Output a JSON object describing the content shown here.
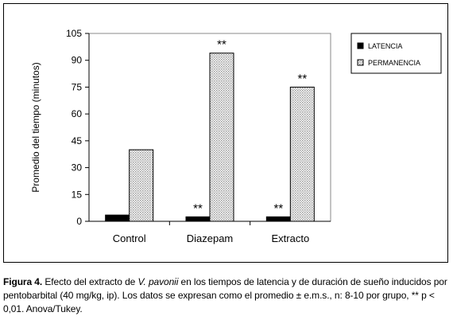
{
  "chart_data": {
    "type": "bar",
    "categories": [
      "Control",
      "Diazepam",
      "Extracto"
    ],
    "series": [
      {
        "name": "LATENCIA",
        "values": [
          3.5,
          2.5,
          2.5
        ],
        "color": "#000000",
        "pattern": "solid"
      },
      {
        "name": "PERMANENCIA",
        "values": [
          40,
          94,
          75
        ],
        "color": "#d9d9d9",
        "pattern": "dotted"
      }
    ],
    "annotations": [
      {
        "category": "Diazepam",
        "series": "LATENCIA",
        "text": "**"
      },
      {
        "category": "Diazepam",
        "series": "PERMANENCIA",
        "text": "**"
      },
      {
        "category": "Extracto",
        "series": "LATENCIA",
        "text": "**"
      },
      {
        "category": "Extracto",
        "series": "PERMANENCIA",
        "text": "**"
      }
    ],
    "ylabel": "Promedio del tiempo (minutos)",
    "xlabel": "",
    "ylim": [
      0,
      105
    ],
    "yticks": [
      0,
      15,
      30,
      45,
      60,
      75,
      90,
      105
    ],
    "grid": false,
    "legend_position": "top-right"
  },
  "caption": {
    "label": "Figura 4.",
    "text_before": " Efecto del extracto de ",
    "species": "V. pavonii",
    "text_after": " en los tiempos de latencia y de duración de sueño inducidos por pentobarbital (40 mg/kg, ip). Los datos se expresan como el promedio ± e.m.s., n: 8-10 por grupo, ** p < 0,01. Anova/Tukey."
  }
}
